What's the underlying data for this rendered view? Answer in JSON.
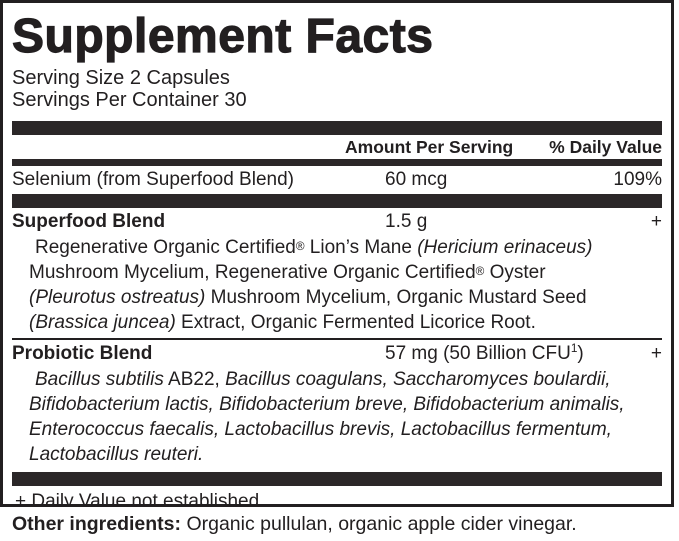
{
  "label": {
    "title": "Supplement Facts",
    "serving_size": "Serving Size 2 Capsules",
    "servings_per_container": "Servings Per Container 30",
    "columns": {
      "amount": "Amount Per Serving",
      "daily_value": "% Daily Value"
    },
    "rows": [
      {
        "name": "Selenium (from Superfood Blend)",
        "amount": "60 mcg",
        "daily_value": "109%"
      }
    ],
    "blends": [
      {
        "name": "Superfood Blend",
        "amount_segments": [
          {
            "t": "1.5 g"
          }
        ],
        "daily_value": "+",
        "description_lines": [
          [
            {
              "t": "Regenerative Organic Certified"
            },
            {
              "t": "®",
              "sup": true
            },
            {
              "t": " Lion’s Mane "
            },
            {
              "t": "(Hericium erinaceus)",
              "i": true
            }
          ],
          [
            {
              "t": "Mushroom Mycelium, Regenerative Organic Certified"
            },
            {
              "t": "®",
              "sup": true
            },
            {
              "t": " Oyster"
            }
          ],
          [
            {
              "t": "(Pleurotus ostreatus)",
              "i": true
            },
            {
              "t": " Mushroom Mycelium, Organic Mustard Seed"
            }
          ],
          [
            {
              "t": "(Brassica juncea)",
              "i": true
            },
            {
              "t": " Extract, Organic Fermented Licorice Root."
            }
          ]
        ]
      },
      {
        "name": "Probiotic Blend",
        "amount_segments": [
          {
            "t": "57 mg (50 Billion CFU"
          },
          {
            "t": "1",
            "sup": true
          },
          {
            "t": ")"
          }
        ],
        "daily_value": "+",
        "description_lines": [
          [
            {
              "t": "Bacillus subtilis",
              "i": true
            },
            {
              "t": " AB22, "
            },
            {
              "t": "Bacillus coagulans, Saccharomyces boulardii,",
              "i": true
            }
          ],
          [
            {
              "t": "Bifidobacterium lactis, Bifidobacterium breve, Bifidobacterium animalis,",
              "i": true
            }
          ],
          [
            {
              "t": "Enterococcus faecalis, Lactobacillus brevis, Lactobacillus fermentum,",
              "i": true
            }
          ],
          [
            {
              "t": "Lactobacillus reuteri.",
              "i": true
            }
          ]
        ]
      }
    ],
    "footnote": "+ Daily Value not established.",
    "other_ingredients_label": "Other ingredients:",
    "other_ingredients_text": " Organic pullulan, organic apple cider vinegar."
  },
  "colors": {
    "ink": "#221f20",
    "bar": "#2b2728",
    "background": "#ffffff"
  }
}
